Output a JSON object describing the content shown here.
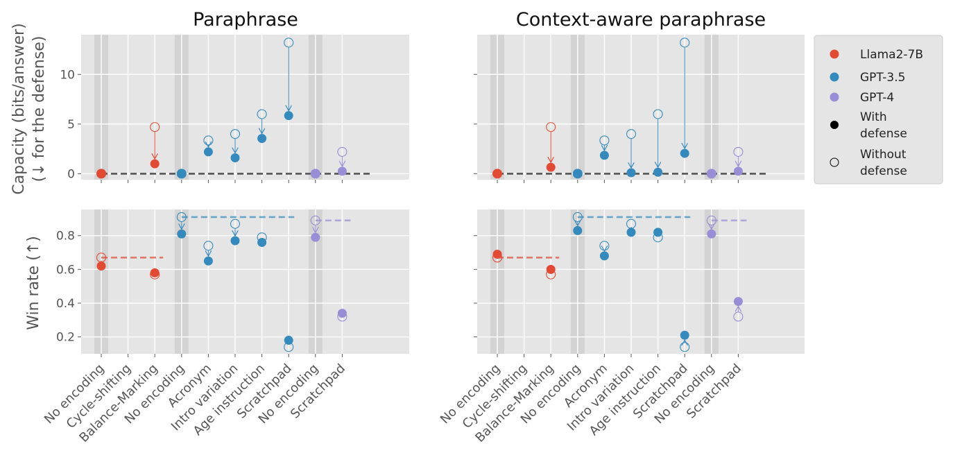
{
  "colors": {
    "Llama2-7B": "#e24a33",
    "GPT-3.5": "#348abd",
    "GPT-4": "#988ed5",
    "panel_bg": "#e5e5e5",
    "grid": "#ffffff",
    "band": "#d3d3d3",
    "baseline": "#555555"
  },
  "legend": {
    "items": [
      {
        "label": "Llama2-7B",
        "type": "Llama2-7B"
      },
      {
        "label": "GPT-3.5",
        "type": "GPT-3.5"
      },
      {
        "label": "GPT-4",
        "type": "GPT-4"
      },
      {
        "label_lines": [
          "With",
          "defense"
        ],
        "type": "filled"
      },
      {
        "label_lines": [
          "Without",
          "defense"
        ],
        "type": "hollow"
      }
    ]
  },
  "chart_data": {
    "type": "scatter",
    "categories": [
      "No encoding",
      "Cycle-shifting",
      "Balance-Marking",
      "No encoding",
      "Acronym",
      "Intro variation",
      "Age instruction",
      "Scratchpad",
      "No encoding",
      "Scratchpad"
    ],
    "category_models": [
      "Llama2-7B",
      "Llama2-7B",
      "Llama2-7B",
      "GPT-3.5",
      "GPT-3.5",
      "GPT-3.5",
      "GPT-3.5",
      "GPT-3.5",
      "GPT-4",
      "GPT-4"
    ],
    "shaded_categories": [
      0,
      3,
      8
    ],
    "columns": [
      "Paraphrase",
      "Context-aware paraphrase"
    ],
    "rows": [
      {
        "ylabel_lines": [
          "Capacity (bits/answer)",
          "(↓ for the defense)"
        ],
        "ylim": [
          -0.6,
          14
        ],
        "yticks": [
          0,
          5,
          10
        ],
        "tick_labels": [
          "0",
          "5",
          "10"
        ],
        "baseline": {
          "type": "single",
          "value": 0
        }
      },
      {
        "ylabel_lines": [
          "Win rate (↑)"
        ],
        "ylim": [
          0.1,
          0.955
        ],
        "yticks": [
          0.2,
          0.4,
          0.6,
          0.8
        ],
        "tick_labels": [
          "0.2",
          "0.4",
          "0.6",
          "0.8"
        ],
        "baseline": {
          "type": "per_model",
          "values": {
            "Llama2-7B": 0.67,
            "GPT-3.5": 0.91,
            "GPT-4": 0.89
          }
        }
      }
    ],
    "panels": [
      {
        "title": "Paraphrase",
        "series": [
          {
            "name": "Without defense",
            "capacity": [
              0.0,
              null,
              4.7,
              0.0,
              3.35,
              4.0,
              6.0,
              13.2,
              0.0,
              2.2
            ],
            "win_rate": [
              0.67,
              null,
              0.57,
              0.91,
              0.74,
              0.87,
              0.79,
              0.14,
              0.89,
              0.32
            ]
          },
          {
            "name": "With defense",
            "capacity": [
              0.0,
              null,
              1.0,
              0.0,
              2.2,
              1.6,
              3.55,
              5.85,
              0.0,
              0.25
            ],
            "win_rate": [
              0.62,
              null,
              0.58,
              0.81,
              0.65,
              0.77,
              0.76,
              0.18,
              0.79,
              0.34
            ]
          }
        ]
      },
      {
        "title": "Context-aware paraphrase",
        "series": [
          {
            "name": "Without defense",
            "capacity": [
              0.0,
              null,
              4.7,
              0.0,
              3.35,
              4.0,
              6.0,
              13.2,
              0.0,
              2.2
            ],
            "win_rate": [
              0.67,
              null,
              0.57,
              0.91,
              0.74,
              0.87,
              0.79,
              0.14,
              0.89,
              0.32
            ]
          },
          {
            "name": "With defense",
            "capacity": [
              0.0,
              null,
              0.65,
              0.0,
              1.85,
              0.1,
              0.15,
              2.05,
              0.0,
              0.25
            ],
            "win_rate": [
              0.69,
              null,
              0.6,
              0.83,
              0.68,
              0.82,
              0.82,
              0.21,
              0.81,
              0.41
            ]
          }
        ]
      }
    ]
  }
}
